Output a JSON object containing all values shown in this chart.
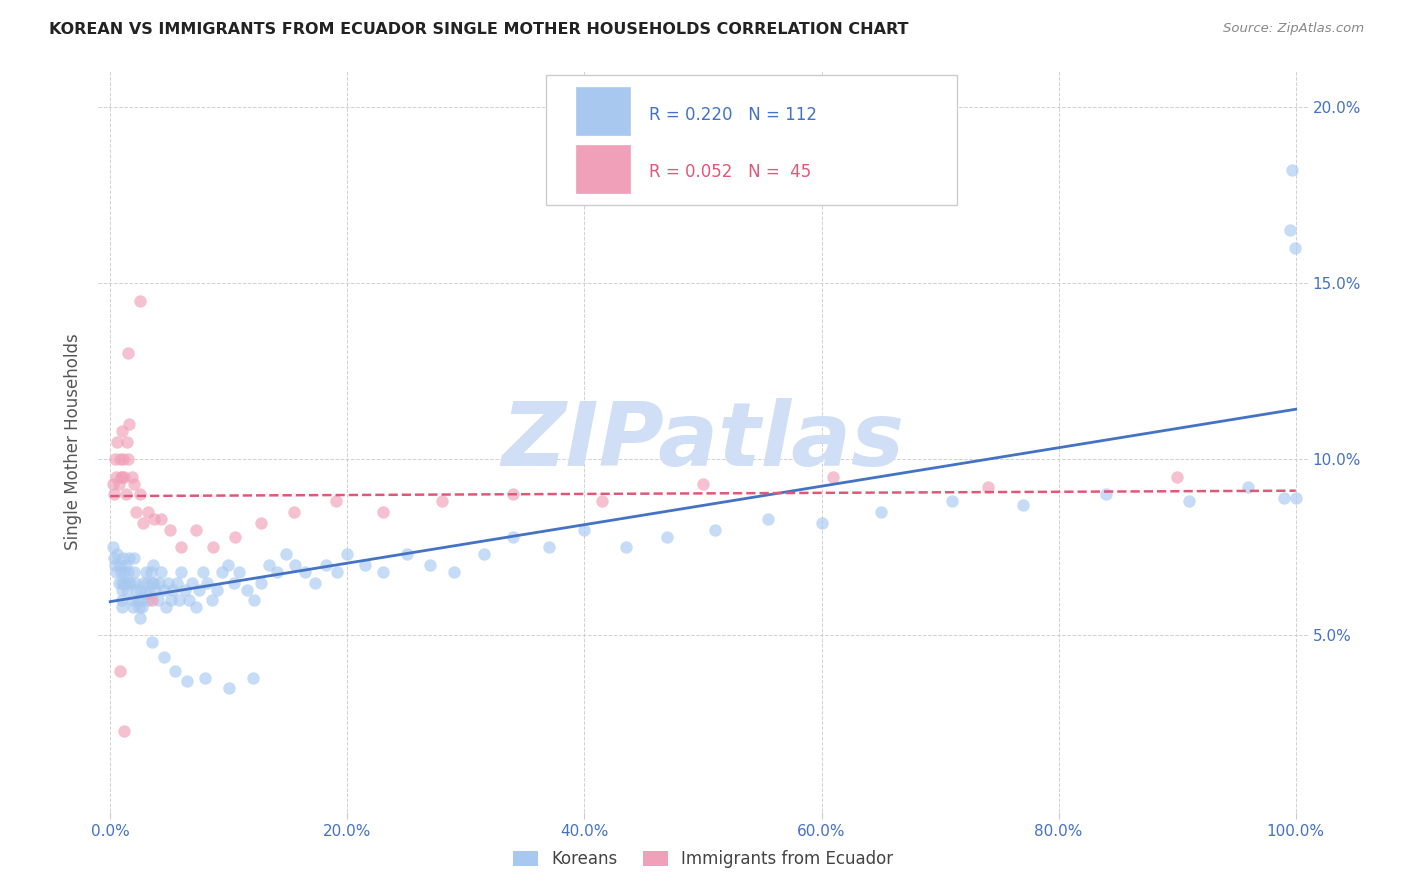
{
  "title": "KOREAN VS IMMIGRANTS FROM ECUADOR SINGLE MOTHER HOUSEHOLDS CORRELATION CHART",
  "source": "Source: ZipAtlas.com",
  "ylabel": "Single Mother Households",
  "xlim": [
    0,
    1.0
  ],
  "ylim": [
    0,
    0.21
  ],
  "xticks": [
    0.0,
    0.2,
    0.4,
    0.6,
    0.8,
    1.0
  ],
  "xticklabels": [
    "0.0%",
    "20.0%",
    "40.0%",
    "60.0%",
    "80.0%",
    "100.0%"
  ],
  "yticks_left": [
    0.0,
    0.05,
    0.1,
    0.15,
    0.2
  ],
  "yticklabels_left": [
    "",
    "",
    "",
    "",
    ""
  ],
  "yticks_right": [
    0.05,
    0.1,
    0.15,
    0.2
  ],
  "yticklabels_right": [
    "5.0%",
    "10.0%",
    "15.0%",
    "20.0%"
  ],
  "korean_R": 0.22,
  "korean_N": 112,
  "ecuador_R": 0.052,
  "ecuador_N": 45,
  "korean_color": "#a8c8f0",
  "ecuador_color": "#f0a0b8",
  "korean_line_color": "#4472c4",
  "ecuador_line_color": "#e05878",
  "watermark": "ZIPatlas",
  "watermark_color": "#d0dff5",
  "legend_label1": "Koreans",
  "legend_label2": "Immigrants from Ecuador",
  "korean_x": [
    0.002,
    0.003,
    0.004,
    0.005,
    0.006,
    0.007,
    0.008,
    0.009,
    0.01,
    0.01,
    0.01,
    0.01,
    0.011,
    0.012,
    0.012,
    0.013,
    0.014,
    0.015,
    0.015,
    0.016,
    0.017,
    0.018,
    0.019,
    0.02,
    0.02,
    0.021,
    0.022,
    0.023,
    0.024,
    0.025,
    0.026,
    0.027,
    0.028,
    0.029,
    0.03,
    0.031,
    0.032,
    0.033,
    0.034,
    0.035,
    0.036,
    0.037,
    0.038,
    0.04,
    0.041,
    0.043,
    0.045,
    0.047,
    0.049,
    0.051,
    0.053,
    0.056,
    0.058,
    0.06,
    0.063,
    0.066,
    0.069,
    0.072,
    0.075,
    0.078,
    0.082,
    0.086,
    0.09,
    0.094,
    0.099,
    0.104,
    0.109,
    0.115,
    0.121,
    0.127,
    0.134,
    0.141,
    0.148,
    0.156,
    0.164,
    0.173,
    0.182,
    0.191,
    0.2,
    0.215,
    0.23,
    0.25,
    0.27,
    0.29,
    0.315,
    0.34,
    0.37,
    0.4,
    0.435,
    0.47,
    0.51,
    0.555,
    0.6,
    0.65,
    0.71,
    0.77,
    0.84,
    0.91,
    0.96,
    0.99,
    0.995,
    0.997,
    0.999,
    1.0,
    0.025,
    0.035,
    0.045,
    0.055,
    0.065,
    0.08,
    0.1,
    0.12
  ],
  "korean_y": [
    0.075,
    0.072,
    0.07,
    0.068,
    0.073,
    0.065,
    0.07,
    0.068,
    0.065,
    0.063,
    0.06,
    0.058,
    0.072,
    0.068,
    0.065,
    0.07,
    0.063,
    0.068,
    0.065,
    0.072,
    0.065,
    0.06,
    0.058,
    0.072,
    0.068,
    0.065,
    0.063,
    0.06,
    0.058,
    0.063,
    0.06,
    0.058,
    0.065,
    0.062,
    0.068,
    0.065,
    0.06,
    0.062,
    0.068,
    0.065,
    0.07,
    0.065,
    0.063,
    0.06,
    0.065,
    0.068,
    0.063,
    0.058,
    0.065,
    0.06,
    0.063,
    0.065,
    0.06,
    0.068,
    0.063,
    0.06,
    0.065,
    0.058,
    0.063,
    0.068,
    0.065,
    0.06,
    0.063,
    0.068,
    0.07,
    0.065,
    0.068,
    0.063,
    0.06,
    0.065,
    0.07,
    0.068,
    0.073,
    0.07,
    0.068,
    0.065,
    0.07,
    0.068,
    0.073,
    0.07,
    0.068,
    0.073,
    0.07,
    0.068,
    0.073,
    0.078,
    0.075,
    0.08,
    0.075,
    0.078,
    0.08,
    0.083,
    0.082,
    0.085,
    0.088,
    0.087,
    0.09,
    0.088,
    0.092,
    0.089,
    0.165,
    0.182,
    0.16,
    0.089,
    0.055,
    0.048,
    0.044,
    0.04,
    0.037,
    0.038,
    0.035,
    0.038
  ],
  "ecuador_x": [
    0.002,
    0.003,
    0.004,
    0.005,
    0.006,
    0.007,
    0.008,
    0.009,
    0.01,
    0.01,
    0.011,
    0.012,
    0.013,
    0.014,
    0.015,
    0.016,
    0.018,
    0.02,
    0.022,
    0.025,
    0.028,
    0.032,
    0.037,
    0.043,
    0.05,
    0.06,
    0.072,
    0.087,
    0.105,
    0.127,
    0.155,
    0.19,
    0.23,
    0.28,
    0.34,
    0.415,
    0.5,
    0.61,
    0.74,
    0.9,
    0.025,
    0.035,
    0.015,
    0.008,
    0.012
  ],
  "ecuador_y": [
    0.093,
    0.09,
    0.1,
    0.095,
    0.105,
    0.093,
    0.1,
    0.095,
    0.108,
    0.095,
    0.1,
    0.095,
    0.09,
    0.105,
    0.1,
    0.11,
    0.095,
    0.093,
    0.085,
    0.09,
    0.082,
    0.085,
    0.083,
    0.083,
    0.08,
    0.075,
    0.08,
    0.075,
    0.078,
    0.082,
    0.085,
    0.088,
    0.085,
    0.088,
    0.09,
    0.088,
    0.093,
    0.095,
    0.092,
    0.095,
    0.145,
    0.06,
    0.13,
    0.04,
    0.023
  ]
}
